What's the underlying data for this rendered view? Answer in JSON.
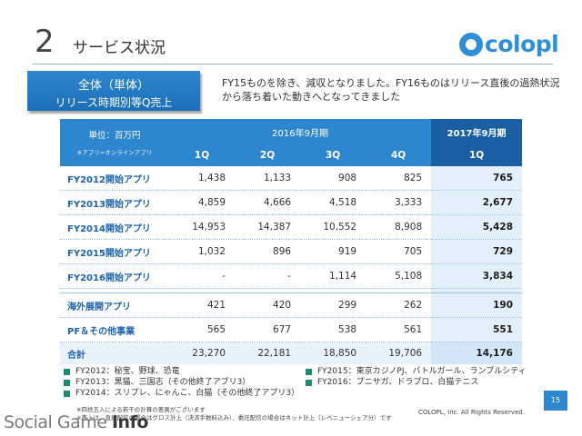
{
  "header": {
    "number": "2",
    "title": "サービス状況",
    "logo_text": "colopl"
  },
  "scope": {
    "line1": "全体（単体）",
    "line2": "リリース時期別等Q売上"
  },
  "note": "FY15ものを除き、減収となりました。FY16ものはリリース直後の過熱状況から落ち着いた動きへとなってきました",
  "table": {
    "unit": "単位：百万円",
    "unit_sub": "※アプリ=オンラインアプリ",
    "period_2016": "2016年9月期",
    "period_2017": "2017年9月期",
    "quarters": [
      "1Q",
      "2Q",
      "3Q",
      "4Q",
      "1Q"
    ],
    "rows": [
      {
        "label": "FY2012開始アプリ",
        "values": [
          "1,438",
          "1,133",
          "908",
          "825",
          "765"
        ]
      },
      {
        "label": "FY2013開始アプリ",
        "values": [
          "4,859",
          "4,666",
          "4,518",
          "3,333",
          "2,677"
        ]
      },
      {
        "label": "FY2014開始アプリ",
        "values": [
          "14,953",
          "14,387",
          "10,552",
          "8,908",
          "5,428"
        ]
      },
      {
        "label": "FY2015開始アプリ",
        "values": [
          "1,032",
          "896",
          "919",
          "705",
          "729"
        ]
      },
      {
        "label": "FY2016開始アプリ",
        "values": [
          "-",
          "-",
          "1,114",
          "5,108",
          "3,834"
        ]
      },
      {
        "label": "海外展開アプリ",
        "values": [
          "421",
          "420",
          "299",
          "262",
          "190"
        ]
      },
      {
        "label": "PF＆その他事業",
        "values": [
          "565",
          "677",
          "538",
          "561",
          "551"
        ]
      }
    ],
    "total": {
      "label": "合計",
      "values": [
        "23,270",
        "22,181",
        "18,850",
        "19,706",
        "14,176"
      ]
    }
  },
  "legend": {
    "left": [
      "FY2012：秘宝、野球、恐竜",
      "FY2013：黒猫、三国志（その他終了アプリ3）",
      "FY2014：スリプレ、にゃんこ、白猫（その他終了アプリ3）"
    ],
    "right": [
      "FY2015：東京カジノPJ、バトルガール、ランブルシティ",
      "FY2016：プニサガ、ドラプロ、白猫テニス"
    ]
  },
  "footnotes": [
    "※四捨五入による若干の計算の差異がございます",
    "※売上は、直接配信の場合はグロス計上（決済手数料込み）、委託配信の場合はネット計上（レベニューシェア分）です"
  ],
  "copyright": "COLOPL, Inc. All Rights Reserved.",
  "page_number": "15",
  "watermark": {
    "part1": "Social Game ",
    "part2": "Info"
  },
  "colors": {
    "accent": "#2e86cf",
    "accent_dark": "#1a5fa3",
    "label_blue": "#1b63ad",
    "legend_green": "#1f8a70"
  }
}
